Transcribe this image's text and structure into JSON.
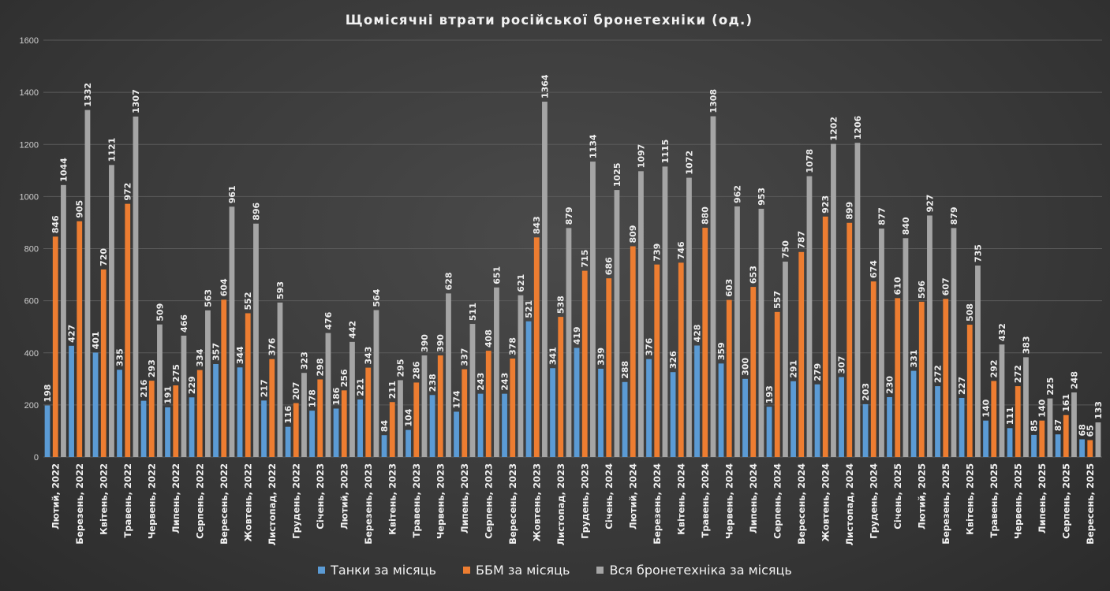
{
  "chart_data": {
    "type": "bar",
    "title": "Щомісячні  втрати  російської  бронетехніки  (од.)",
    "xlabel": "",
    "ylabel": "",
    "ylim": [
      0,
      1600
    ],
    "yticks": [
      0,
      200,
      400,
      600,
      800,
      1000,
      1200,
      1400,
      1600
    ],
    "grid": true,
    "legend_position": "bottom",
    "categories": [
      "Лютий, 2022",
      "Березень, 2022",
      "Квітень, 2022",
      "Травень, 2022",
      "Червень, 2022",
      "Липень, 2022",
      "Серпень, 2022",
      "Вересень, 2022",
      "Жовтень, 2022",
      "Листопад, 2022",
      "Грудень, 2022",
      "Січень, 2023",
      "Лютий, 2023",
      "Березень, 2023",
      "Квітень, 2023",
      "Травень, 2023",
      "Червень, 2023",
      "Липень, 2023",
      "Серпень, 2023",
      "Вересень, 2023",
      "Жовтень, 2023",
      "Листопад, 2023",
      "Грудень, 2023",
      "Січень, 2024",
      "Лютий, 2024",
      "Березень, 2024",
      "Квітень, 2024",
      "Травень, 2024",
      "Червень, 2024",
      "Липень, 2024",
      "Серпень, 2024",
      "Вересень, 2024",
      "Жовтень, 2024",
      "Листопад, 2024",
      "Грудень, 2024",
      "Січень, 2025",
      "Лютий, 2025",
      "Березень, 2025",
      "Квітень, 2025",
      "Травень, 2025",
      "Червень, 2025",
      "Липень, 2025",
      "Серпень, 2025",
      "Вересень, 2025"
    ],
    "series": [
      {
        "name": "Танки за місяць",
        "color": "#5b9bd5",
        "values": [
          198,
          427,
          401,
          335,
          216,
          191,
          229,
          357,
          344,
          217,
          116,
          178,
          186,
          221,
          84,
          104,
          238,
          174,
          243,
          243,
          521,
          341,
          419,
          339,
          288,
          376,
          326,
          428,
          359,
          300,
          193,
          291,
          279,
          307,
          203,
          230,
          331,
          272,
          227,
          140,
          111,
          85,
          87,
          68
        ]
      },
      {
        "name": "ББМ за місяць",
        "color": "#ed7d31",
        "values": [
          846,
          905,
          720,
          972,
          293,
          275,
          334,
          604,
          552,
          376,
          207,
          298,
          256,
          343,
          211,
          286,
          390,
          337,
          408,
          378,
          843,
          538,
          715,
          686,
          809,
          739,
          746,
          880,
          603,
          653,
          557,
          787,
          923,
          899,
          674,
          610,
          596,
          607,
          508,
          292,
          272,
          140,
          161,
          65
        ]
      },
      {
        "name": "Вся бронетехніка за місяць",
        "color": "#a5a5a5",
        "values": [
          1044,
          1332,
          1121,
          1307,
          509,
          466,
          563,
          961,
          896,
          593,
          323,
          476,
          442,
          564,
          295,
          390,
          628,
          511,
          651,
          621,
          1364,
          879,
          1134,
          1025,
          1097,
          1115,
          1072,
          1308,
          962,
          953,
          750,
          1078,
          1202,
          1206,
          877,
          840,
          927,
          879,
          735,
          432,
          383,
          225,
          248,
          133
        ]
      }
    ]
  }
}
